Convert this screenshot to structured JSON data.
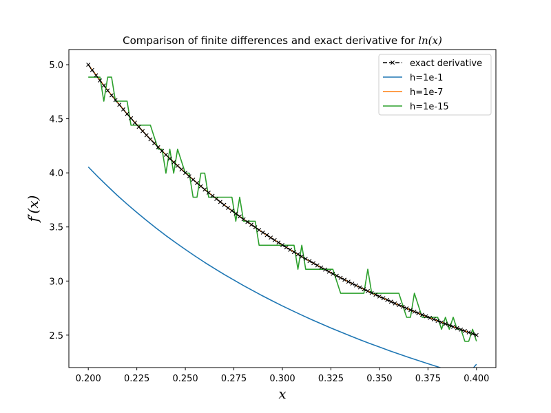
{
  "chart_data": {
    "type": "line",
    "title": "Comparison of finite differences and exact derivative for ln(x)",
    "title_prefix": "Comparison of finite differences and exact derivative for ",
    "title_math": "ln(x)",
    "xlabel": "x",
    "ylabel": "f′(x)",
    "xlim": [
      0.19,
      0.41
    ],
    "ylim": [
      2.2,
      5.14
    ],
    "xticks": [
      "0.200",
      "0.225",
      "0.250",
      "0.275",
      "0.300",
      "0.325",
      "0.350",
      "0.375",
      "0.400"
    ],
    "yticks": [
      "2.5",
      "3.0",
      "3.5",
      "4.0",
      "4.5",
      "5.0"
    ],
    "legend_position": "top-right",
    "series": [
      {
        "name": "exact derivative",
        "style": "dashed-x-markers",
        "color": "#000000",
        "x": [
          0.2,
          0.202,
          0.204,
          0.206,
          0.208,
          0.21,
          0.212,
          0.214,
          0.216,
          0.218,
          0.22,
          0.222,
          0.224,
          0.226,
          0.228,
          0.23,
          0.232,
          0.234,
          0.236,
          0.238,
          0.24,
          0.242,
          0.244,
          0.246,
          0.248,
          0.25,
          0.252,
          0.254,
          0.256,
          0.258,
          0.26,
          0.262,
          0.264,
          0.266,
          0.268,
          0.27,
          0.272,
          0.274,
          0.276,
          0.278,
          0.28,
          0.282,
          0.284,
          0.286,
          0.288,
          0.29,
          0.292,
          0.294,
          0.296,
          0.298,
          0.3,
          0.302,
          0.304,
          0.306,
          0.308,
          0.31,
          0.312,
          0.314,
          0.316,
          0.318,
          0.32,
          0.322,
          0.324,
          0.326,
          0.328,
          0.33,
          0.332,
          0.334,
          0.336,
          0.338,
          0.34,
          0.342,
          0.344,
          0.346,
          0.348,
          0.35,
          0.352,
          0.354,
          0.356,
          0.358,
          0.36,
          0.362,
          0.364,
          0.366,
          0.368,
          0.37,
          0.372,
          0.374,
          0.376,
          0.378,
          0.38,
          0.382,
          0.384,
          0.386,
          0.388,
          0.39,
          0.392,
          0.394,
          0.396,
          0.398,
          0.4
        ],
        "y": [
          5.0,
          4.951,
          4.902,
          4.854,
          4.808,
          4.762,
          4.717,
          4.673,
          4.63,
          4.587,
          4.545,
          4.505,
          4.464,
          4.425,
          4.386,
          4.348,
          4.31,
          4.274,
          4.237,
          4.202,
          4.167,
          4.132,
          4.098,
          4.065,
          4.032,
          4.0,
          3.968,
          3.937,
          3.906,
          3.876,
          3.846,
          3.817,
          3.788,
          3.759,
          3.731,
          3.704,
          3.676,
          3.65,
          3.623,
          3.597,
          3.571,
          3.546,
          3.521,
          3.497,
          3.472,
          3.448,
          3.425,
          3.401,
          3.378,
          3.356,
          3.333,
          3.311,
          3.289,
          3.268,
          3.247,
          3.226,
          3.205,
          3.185,
          3.165,
          3.145,
          3.125,
          3.106,
          3.086,
          3.067,
          3.049,
          3.03,
          3.012,
          2.994,
          2.976,
          2.959,
          2.941,
          2.924,
          2.907,
          2.89,
          2.874,
          2.857,
          2.841,
          2.825,
          2.809,
          2.793,
          2.778,
          2.762,
          2.747,
          2.732,
          2.717,
          2.703,
          2.688,
          2.674,
          2.66,
          2.646,
          2.632,
          2.618,
          2.604,
          2.591,
          2.577,
          2.564,
          2.551,
          2.538,
          2.525,
          2.513,
          2.5
        ]
      },
      {
        "name": "h=1e-1",
        "style": "solid",
        "color": "#1f77b4",
        "x": [
          0.2,
          0.205,
          0.21,
          0.215,
          0.22,
          0.225,
          0.23,
          0.235,
          0.24,
          0.245,
          0.25,
          0.255,
          0.26,
          0.265,
          0.27,
          0.275,
          0.28,
          0.285,
          0.29,
          0.295,
          0.3,
          0.305,
          0.31,
          0.315,
          0.32,
          0.325,
          0.33,
          0.335,
          0.34,
          0.345,
          0.35,
          0.355,
          0.36,
          0.365,
          0.37,
          0.375,
          0.38,
          0.385,
          0.39,
          0.395,
          0.4
        ],
        "y": [
          4.055,
          3.963,
          3.876,
          3.791,
          3.711,
          3.634,
          3.56,
          3.489,
          3.42,
          3.355,
          3.292,
          3.231,
          3.172,
          3.116,
          3.061,
          3.009,
          2.958,
          2.909,
          2.861,
          2.815,
          2.77,
          2.727,
          2.685,
          2.644,
          2.605,
          2.566,
          2.529,
          2.493,
          2.457,
          2.423,
          2.39,
          2.357,
          2.326,
          2.295,
          2.265,
          2.236,
          2.207,
          2.179,
          2.152,
          2.126,
          2.231
        ]
      },
      {
        "name": "h=1e-7",
        "style": "solid",
        "color": "#ff7f0e",
        "x": [
          0.2,
          0.21,
          0.22,
          0.23,
          0.24,
          0.25,
          0.26,
          0.27,
          0.28,
          0.29,
          0.3,
          0.31,
          0.32,
          0.33,
          0.34,
          0.35,
          0.36,
          0.37,
          0.38,
          0.39,
          0.4
        ],
        "y": [
          5.0,
          4.762,
          4.545,
          4.348,
          4.167,
          4.0,
          3.846,
          3.704,
          3.571,
          3.448,
          3.333,
          3.226,
          3.125,
          3.03,
          2.941,
          2.857,
          2.778,
          2.703,
          2.632,
          2.564,
          2.5
        ]
      },
      {
        "name": "h=1e-15",
        "style": "solid",
        "color": "#2ca02c",
        "x": [
          0.2,
          0.204,
          0.206,
          0.208,
          0.21,
          0.212,
          0.214,
          0.216,
          0.22,
          0.222,
          0.226,
          0.23,
          0.232,
          0.236,
          0.238,
          0.24,
          0.242,
          0.244,
          0.246,
          0.25,
          0.252,
          0.254,
          0.256,
          0.258,
          0.26,
          0.262,
          0.266,
          0.27,
          0.272,
          0.274,
          0.276,
          0.278,
          0.28,
          0.282,
          0.284,
          0.286,
          0.288,
          0.29,
          0.292,
          0.296,
          0.3,
          0.306,
          0.308,
          0.31,
          0.312,
          0.316,
          0.32,
          0.324,
          0.326,
          0.33,
          0.334,
          0.34,
          0.342,
          0.344,
          0.346,
          0.356,
          0.36,
          0.364,
          0.366,
          0.368,
          0.372,
          0.376,
          0.378,
          0.38,
          0.382,
          0.384,
          0.386,
          0.388,
          0.39,
          0.392,
          0.394,
          0.396,
          0.398,
          0.4
        ],
        "y": [
          4.885,
          4.885,
          4.885,
          4.663,
          4.885,
          4.885,
          4.663,
          4.663,
          4.663,
          4.441,
          4.441,
          4.441,
          4.441,
          4.219,
          4.219,
          3.997,
          4.219,
          3.997,
          4.219,
          3.997,
          3.997,
          3.775,
          3.775,
          3.997,
          3.997,
          3.775,
          3.775,
          3.775,
          3.775,
          3.775,
          3.553,
          3.775,
          3.553,
          3.553,
          3.553,
          3.553,
          3.331,
          3.331,
          3.331,
          3.331,
          3.331,
          3.331,
          3.109,
          3.331,
          3.109,
          3.109,
          3.109,
          3.109,
          3.109,
          2.887,
          2.887,
          2.887,
          2.887,
          3.109,
          2.887,
          2.887,
          2.887,
          2.665,
          2.665,
          2.887,
          2.665,
          2.665,
          2.665,
          2.665,
          2.554,
          2.665,
          2.554,
          2.665,
          2.554,
          2.554,
          2.443,
          2.443,
          2.554,
          2.443
        ]
      }
    ]
  }
}
